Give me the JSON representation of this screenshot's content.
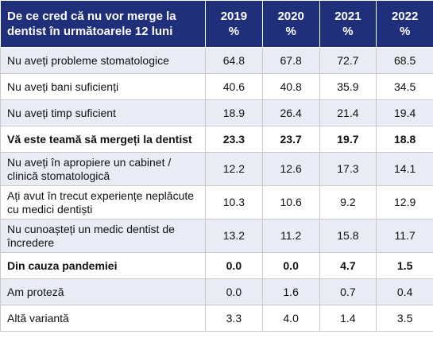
{
  "chart_data": {
    "type": "table",
    "header": {
      "label": "De ce cred că nu vor merge la dentist în următoarele 12 luni",
      "years": [
        "2019",
        "2020",
        "2021",
        "2022"
      ],
      "unit": "%"
    },
    "rows": [
      {
        "label": "Nu aveți probleme stomatologice",
        "values": [
          "64.8",
          "67.8",
          "72.7",
          "68.5"
        ],
        "bold": false
      },
      {
        "label": "Nu aveți bani suficienți",
        "values": [
          "40.6",
          "40.8",
          "35.9",
          "34.5"
        ],
        "bold": false
      },
      {
        "label": "Nu aveți timp suficient",
        "values": [
          "18.9",
          "26.4",
          "21.4",
          "19.4"
        ],
        "bold": false
      },
      {
        "label": "Vă este teamă să mergeți la dentist",
        "values": [
          "23.3",
          "23.7",
          "19.7",
          "18.8"
        ],
        "bold": true
      },
      {
        "label": "Nu aveți în apropiere un cabinet / clinică stomatologică",
        "values": [
          "12.2",
          "12.6",
          "17.3",
          "14.1"
        ],
        "bold": false
      },
      {
        "label": "Ați avut în trecut experiențe neplăcute cu medici dentiști",
        "values": [
          "10.3",
          "10.6",
          "9.2",
          "12.9"
        ],
        "bold": false
      },
      {
        "label": "Nu cunoașteți un medic dentist de încredere",
        "values": [
          "13.2",
          "11.2",
          "15.8",
          "11.7"
        ],
        "bold": false
      },
      {
        "label": "Din cauza pandemiei",
        "values": [
          "0.0",
          "0.0",
          "4.7",
          "1.5"
        ],
        "bold": true
      },
      {
        "label": "Am proteză",
        "values": [
          "0.0",
          "1.6",
          "0.7",
          "0.4"
        ],
        "bold": false
      },
      {
        "label": "Altă variantă",
        "values": [
          "3.3",
          "4.0",
          "1.4",
          "3.5"
        ],
        "bold": false
      }
    ]
  }
}
